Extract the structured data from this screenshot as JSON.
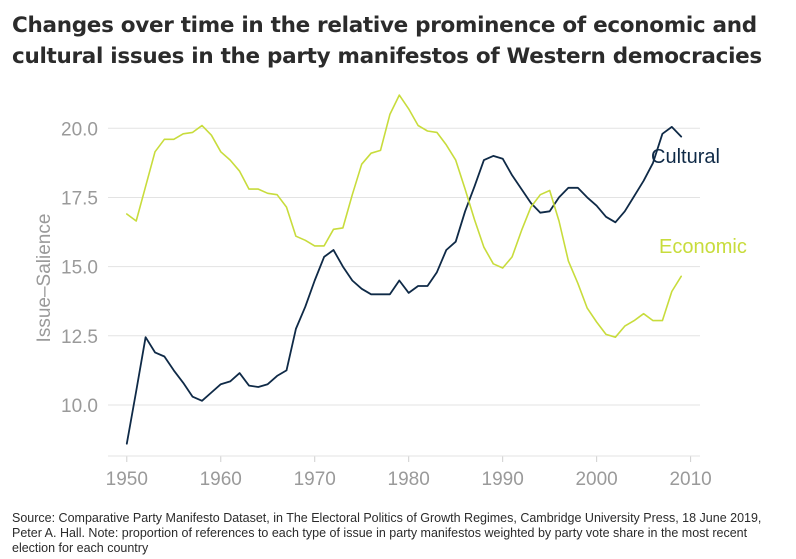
{
  "title": "Changes over time in the relative prominence of economic and cultural issues in the party manifestos of Western democracies",
  "source": "Source: Comparative Party Manifesto Dataset, in The Electoral Politics of Growth Regimes, Cambridge University Press, 18 June 2019, Peter A. Hall. Note: proportion of references to each type of issue in party manifestos weighted by party vote share in the most recent election for each country",
  "colors": {
    "cultural": "#0f2a47",
    "economic": "#c8dc3c",
    "axis_text": "#9a9a9a",
    "grid": "#e3e3e3"
  },
  "chart_data": {
    "type": "line",
    "title": "Changes over time in the relative prominence of economic and cultural issues in the party manifestos of Western democracies",
    "xlabel": "",
    "ylabel": "Issue–Salience",
    "xlim": [
      1948,
      2011
    ],
    "ylim": [
      8.3,
      21.6
    ],
    "xticks": [
      1950,
      1960,
      1970,
      1980,
      1990,
      2000,
      2010
    ],
    "xtick_labels": [
      "1950",
      "1960",
      "1970",
      "1980",
      "1990",
      "2000",
      "2010"
    ],
    "yticks": [
      10.0,
      12.5,
      15.0,
      17.5,
      20.0
    ],
    "ytick_labels": [
      "10.0",
      "12.5",
      "15.0",
      "17.5",
      "20.0"
    ],
    "grid": "horizontal",
    "legend": "direct-labels",
    "series": [
      {
        "name": "Cultural",
        "color": "#0f2a47",
        "x": [
          1950,
          1951,
          1952,
          1953,
          1954,
          1955,
          1956,
          1957,
          1958,
          1959,
          1960,
          1961,
          1962,
          1963,
          1964,
          1965,
          1966,
          1967,
          1968,
          1969,
          1970,
          1971,
          1972,
          1973,
          1974,
          1975,
          1976,
          1977,
          1978,
          1979,
          1980,
          1981,
          1982,
          1983,
          1984,
          1985,
          1986,
          1987,
          1988,
          1989,
          1990,
          1991,
          1992,
          1993,
          1994,
          1995,
          1996,
          1997,
          1998,
          1999,
          2000,
          2001,
          2002,
          2003,
          2004,
          2005,
          2006,
          2007,
          2008,
          2009
        ],
        "y": [
          8.6,
          10.5,
          12.45,
          11.9,
          11.75,
          11.25,
          10.8,
          10.3,
          10.15,
          10.45,
          10.75,
          10.85,
          11.15,
          10.7,
          10.65,
          10.75,
          11.05,
          11.25,
          12.75,
          13.55,
          14.5,
          15.35,
          15.6,
          15.0,
          14.5,
          14.2,
          14.0,
          14.0,
          14.0,
          14.5,
          14.05,
          14.3,
          14.3,
          14.8,
          15.6,
          15.9,
          17.0,
          17.9,
          18.85,
          19.0,
          18.9,
          18.3,
          17.8,
          17.3,
          16.95,
          17.0,
          17.5,
          17.85,
          17.85,
          17.5,
          17.2,
          16.8,
          16.6,
          17.0,
          17.55,
          18.1,
          18.75,
          19.8,
          20.05,
          19.7
        ]
      },
      {
        "name": "Economic",
        "color": "#c8dc3c",
        "x": [
          1950,
          1951,
          1952,
          1953,
          1954,
          1955,
          1956,
          1957,
          1958,
          1959,
          1960,
          1961,
          1962,
          1963,
          1964,
          1965,
          1966,
          1967,
          1968,
          1969,
          1970,
          1971,
          1972,
          1973,
          1974,
          1975,
          1976,
          1977,
          1978,
          1979,
          1980,
          1981,
          1982,
          1983,
          1984,
          1985,
          1986,
          1987,
          1988,
          1989,
          1990,
          1991,
          1992,
          1993,
          1994,
          1995,
          1996,
          1997,
          1998,
          1999,
          2000,
          2001,
          2002,
          2003,
          2004,
          2005,
          2006,
          2007,
          2008,
          2009
        ],
        "y": [
          16.9,
          16.65,
          17.9,
          19.15,
          19.6,
          19.6,
          19.8,
          19.85,
          20.1,
          19.75,
          19.15,
          18.85,
          18.45,
          17.8,
          17.8,
          17.65,
          17.6,
          17.15,
          16.1,
          15.95,
          15.75,
          15.75,
          16.35,
          16.4,
          17.6,
          18.7,
          19.1,
          19.2,
          20.5,
          21.2,
          20.7,
          20.1,
          19.9,
          19.85,
          19.4,
          18.85,
          17.8,
          16.7,
          15.7,
          15.1,
          14.95,
          15.35,
          16.3,
          17.15,
          17.6,
          17.75,
          16.65,
          15.2,
          14.4,
          13.5,
          13.0,
          12.55,
          12.45,
          12.85,
          13.05,
          13.3,
          13.05,
          13.05,
          14.1,
          14.65
        ]
      }
    ],
    "annotations": [
      {
        "text": "Cultural",
        "series": "Cultural"
      },
      {
        "text": "Economic",
        "series": "Economic"
      }
    ]
  }
}
